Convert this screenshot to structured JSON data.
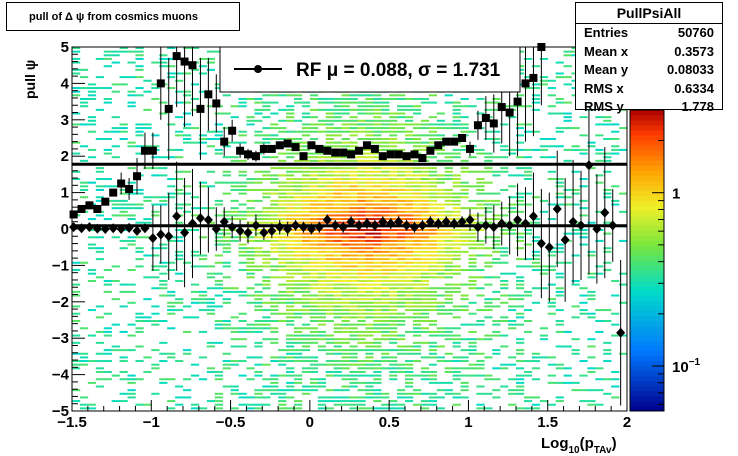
{
  "title_box": "pull of Δ ψ from cosmics muons",
  "stats": {
    "name": "PullPsiAll",
    "rows": [
      {
        "key": "Entries",
        "value": "50760"
      },
      {
        "key": "Mean x",
        "value": "0.3573"
      },
      {
        "key": "Mean y",
        "value": "0.08033"
      },
      {
        "key": "RMS x",
        "value": "0.6334"
      },
      {
        "key": "RMS y",
        "value": "1.778"
      }
    ]
  },
  "chart_data": {
    "type": "heatmap",
    "xlabel": "Log10(pTAv)",
    "ylabel": "pull ψ",
    "xlim": [
      -1.5,
      2.0
    ],
    "ylim": [
      -5,
      5
    ],
    "x_ticks": [
      "−1.5",
      "−1",
      "−0.5",
      "0",
      "0.5",
      "1",
      "1.5",
      "2"
    ],
    "y_ticks": [
      "−5",
      "−4",
      "−3",
      "−2",
      "−1",
      "0",
      "1",
      "2",
      "3",
      "4",
      "5"
    ],
    "legend": {
      "marker": "filled-circle",
      "label": "RF μ = 0.088, σ = 1.731"
    },
    "fit_lines": [
      {
        "y": 0.088
      },
      {
        "y": 1.78
      }
    ],
    "colorbar": {
      "scale": "log",
      "labels": [
        {
          "value": 1,
          "text": "1"
        },
        {
          "value": 0.1,
          "text": "10",
          "sup": "−1"
        }
      ],
      "range": [
        0.055,
        3
      ]
    },
    "series": [
      {
        "name": "mean",
        "marker": "diamond",
        "x": [
          -1.49,
          -1.44,
          -1.39,
          -1.34,
          -1.29,
          -1.24,
          -1.19,
          -1.14,
          -1.09,
          -1.04,
          -0.99,
          -0.94,
          -0.89,
          -0.84,
          -0.79,
          -0.74,
          -0.69,
          -0.64,
          -0.59,
          -0.54,
          -0.49,
          -0.44,
          -0.39,
          -0.34,
          -0.29,
          -0.24,
          -0.19,
          -0.14,
          -0.09,
          -0.04,
          0.01,
          0.06,
          0.11,
          0.16,
          0.21,
          0.26,
          0.31,
          0.36,
          0.41,
          0.46,
          0.51,
          0.56,
          0.61,
          0.66,
          0.71,
          0.76,
          0.81,
          0.86,
          0.91,
          0.96,
          1.01,
          1.06,
          1.11,
          1.16,
          1.21,
          1.26,
          1.31,
          1.36,
          1.41,
          1.46,
          1.51,
          1.56,
          1.61,
          1.66,
          1.71,
          1.76,
          1.81,
          1.86,
          1.91,
          1.96
        ],
        "y": [
          0.05,
          0.02,
          0.05,
          0.01,
          0.0,
          0.02,
          0.0,
          0.03,
          -0.05,
          0.02,
          -0.25,
          -0.15,
          -0.2,
          0.35,
          -0.1,
          0.15,
          0.3,
          0.25,
          0.0,
          0.2,
          0.05,
          -0.05,
          -0.1,
          0.1,
          -0.1,
          -0.05,
          0.05,
          0.0,
          0.1,
          0.05,
          0.0,
          0.05,
          0.25,
          0.1,
          0.05,
          0.2,
          0.1,
          0.15,
          0.1,
          0.2,
          0.15,
          0.2,
          0.1,
          0.05,
          0.1,
          0.2,
          0.15,
          0.2,
          0.15,
          0.2,
          0.25,
          0.05,
          0.1,
          0.05,
          0.15,
          0.1,
          0.25,
          0.15,
          0.35,
          -0.4,
          -0.5,
          0.55,
          -0.3,
          0.2,
          0.1,
          1.75,
          0.0,
          0.45,
          0.1,
          -2.85
        ],
        "err": [
          0.05,
          0.05,
          0.05,
          0.05,
          0.05,
          0.05,
          0.05,
          0.05,
          0.05,
          0.05,
          0.9,
          0.8,
          1.2,
          1.5,
          1.5,
          1.5,
          1.0,
          0.9,
          0.6,
          0.4,
          0.3,
          0.3,
          0.3,
          0.3,
          0.2,
          0.2,
          0.2,
          0.2,
          0.15,
          0.15,
          0.15,
          0.15,
          0.15,
          0.15,
          0.15,
          0.15,
          0.15,
          0.15,
          0.15,
          0.15,
          0.15,
          0.15,
          0.15,
          0.15,
          0.15,
          0.15,
          0.15,
          0.15,
          0.15,
          0.15,
          0.3,
          0.4,
          0.5,
          0.6,
          0.6,
          0.8,
          1.0,
          1.0,
          1.2,
          1.5,
          1.5,
          1.6,
          1.7,
          1.7,
          1.5,
          3.0,
          1.5,
          1.8,
          1.0,
          2.0
        ]
      },
      {
        "name": "rms",
        "marker": "square",
        "x": [
          -1.49,
          -1.44,
          -1.39,
          -1.34,
          -1.29,
          -1.24,
          -1.19,
          -1.14,
          -1.09,
          -1.04,
          -0.99,
          -0.94,
          -0.89,
          -0.84,
          -0.79,
          -0.74,
          -0.69,
          -0.64,
          -0.59,
          -0.54,
          -0.49,
          -0.44,
          -0.39,
          -0.34,
          -0.29,
          -0.24,
          -0.19,
          -0.14,
          -0.09,
          -0.04,
          0.01,
          0.06,
          0.11,
          0.16,
          0.21,
          0.26,
          0.31,
          0.36,
          0.41,
          0.46,
          0.51,
          0.56,
          0.61,
          0.66,
          0.71,
          0.76,
          0.81,
          0.86,
          0.91,
          0.96,
          1.01,
          1.06,
          1.11,
          1.16,
          1.21,
          1.26,
          1.31,
          1.36,
          1.41,
          1.46
        ],
        "y": [
          0.4,
          0.55,
          0.65,
          0.55,
          0.75,
          1.0,
          1.25,
          1.1,
          1.45,
          2.15,
          2.15,
          4.0,
          3.3,
          4.75,
          4.6,
          4.5,
          3.3,
          3.7,
          3.45,
          2.4,
          2.7,
          2.15,
          2.05,
          2.0,
          2.2,
          2.2,
          2.3,
          2.35,
          2.25,
          2.0,
          2.3,
          2.2,
          2.15,
          2.1,
          2.1,
          2.05,
          2.15,
          2.3,
          2.2,
          2.0,
          2.05,
          2.05,
          2.0,
          2.05,
          1.95,
          2.15,
          2.3,
          2.4,
          2.4,
          2.5,
          2.2,
          2.85,
          3.05,
          2.9,
          3.35,
          3.2,
          3.5,
          4.0,
          4.15,
          5.0
        ],
        "err": [
          0.08,
          0.08,
          0.08,
          0.08,
          0.1,
          0.1,
          0.3,
          0.3,
          0.5,
          0.5,
          0.5,
          1.0,
          1.4,
          1.4,
          1.8,
          1.4,
          1.4,
          1.0,
          0.8,
          0.4,
          0.3,
          0.2,
          0.15,
          0.15,
          0.15,
          0.1,
          0.1,
          0.1,
          0.1,
          0.1,
          0.1,
          0.1,
          0.1,
          0.1,
          0.1,
          0.1,
          0.1,
          0.1,
          0.1,
          0.1,
          0.1,
          0.1,
          0.1,
          0.1,
          0.1,
          0.1,
          0.1,
          0.1,
          0.1,
          0.1,
          0.2,
          0.4,
          0.6,
          0.8,
          1.0,
          1.2,
          1.5,
          1.6,
          1.6,
          1.6
        ]
      }
    ]
  }
}
